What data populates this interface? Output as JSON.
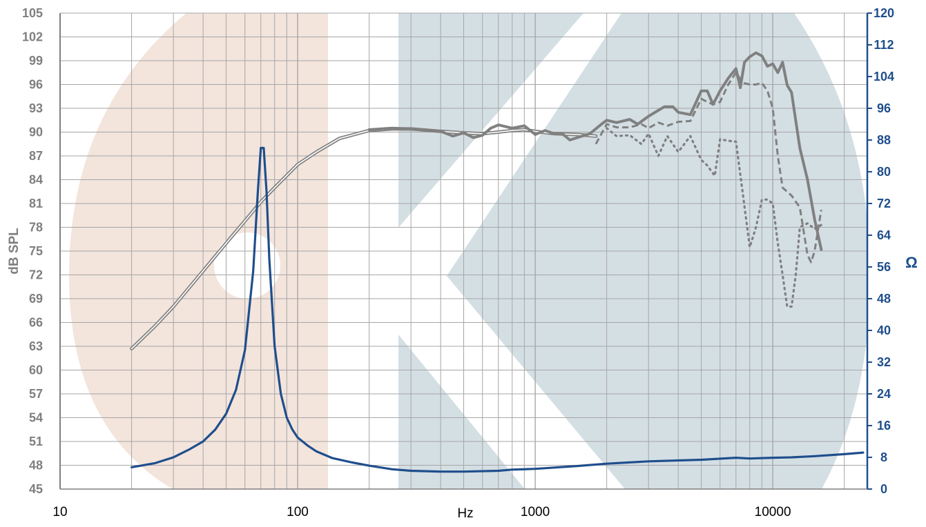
{
  "chart_data": {
    "type": "line",
    "title": "",
    "xlabel": "Hz",
    "ylabel_left": "dB SPL",
    "ylabel_right": "Ω",
    "x_scale": "log",
    "xlim": [
      10,
      25000
    ],
    "ylim_left": [
      45,
      105
    ],
    "ylim_right": [
      0,
      120
    ],
    "x_tick_labels": [
      "10",
      "100",
      "1000",
      "10000"
    ],
    "y_left_tick_labels": [
      "45",
      "48",
      "51",
      "54",
      "57",
      "60",
      "63",
      "66",
      "69",
      "72",
      "75",
      "78",
      "81",
      "84",
      "87",
      "90",
      "93",
      "96",
      "99",
      "102",
      "105"
    ],
    "y_right_tick_labels": [
      "0",
      "8",
      "16",
      "24",
      "32",
      "40",
      "48",
      "56",
      "64",
      "72",
      "80",
      "88",
      "96",
      "104",
      "112",
      "120"
    ],
    "grid": true,
    "colors": {
      "spl": "#808080",
      "impedance": "#1f4e8c",
      "grid": "#a6a6a6",
      "bg_left": "#f3e4dc",
      "bg_right": "#d4dfe4"
    },
    "series": [
      {
        "axis": "left",
        "style": "double",
        "x": [
          20,
          25,
          30,
          40,
          50,
          60,
          70,
          80,
          100,
          120,
          150,
          200,
          250,
          300,
          400,
          500,
          600,
          700,
          800,
          900,
          1000,
          1200,
          1500,
          1800
        ],
        "y": [
          62.7,
          65.5,
          68,
          72.5,
          76,
          78.8,
          81.2,
          83,
          85.9,
          87.5,
          89.2,
          90.2,
          90.4,
          90.4,
          90.1,
          89.9,
          89.8,
          90,
          90.2,
          90.3,
          90.1,
          89.8,
          89.7,
          89.5
        ]
      },
      {
        "axis": "left",
        "style": "solid",
        "x": [
          200,
          250,
          300,
          400,
          450,
          500,
          550,
          600,
          650,
          700,
          800,
          900,
          1000,
          1100,
          1200,
          1300,
          1400,
          1500,
          1700,
          1900,
          2000,
          2200,
          2500,
          2700,
          3000,
          3500,
          3800,
          4000,
          4500,
          5000,
          5300,
          5600,
          6000,
          6500,
          7000,
          7300,
          7600,
          8000,
          8500,
          9000,
          9500,
          10000,
          10500,
          11000,
          11500,
          12000,
          13000,
          14000,
          15000,
          16000
        ],
        "y": [
          90.3,
          90.5,
          90.4,
          90.1,
          89.5,
          89.9,
          89.3,
          89.6,
          90.5,
          90.9,
          90.5,
          90.8,
          89.7,
          90.2,
          89.8,
          89.8,
          89,
          89.3,
          89.8,
          91,
          91.5,
          91.2,
          91.6,
          91,
          92,
          93.2,
          93.2,
          92.5,
          92.2,
          95.2,
          95.2,
          93.5,
          95.2,
          96.8,
          98,
          95.6,
          98.8,
          99.5,
          100,
          99.6,
          98.3,
          98.6,
          97.5,
          98.8,
          95.9,
          95,
          88,
          84,
          79,
          75.2
        ]
      },
      {
        "axis": "left",
        "style": "dashed",
        "x": [
          1800,
          2000,
          2200,
          2500,
          2800,
          3000,
          3300,
          3600,
          4000,
          4500,
          5000,
          5300,
          5600,
          6000,
          6500,
          7000,
          7500,
          8000,
          8500,
          9000,
          9500,
          10000,
          10500,
          11000,
          12000,
          13000,
          14000,
          14500,
          15000,
          16000
        ],
        "y": [
          88.5,
          91,
          90.6,
          90.6,
          91,
          90.5,
          91.2,
          90.8,
          91.3,
          91.4,
          94.2,
          93.8,
          93.5,
          93.8,
          96,
          97.5,
          96.2,
          96,
          96,
          96.2,
          95.2,
          93,
          87,
          83,
          82,
          80.5,
          74.5,
          73.6,
          75,
          80.2
        ]
      },
      {
        "axis": "left",
        "style": "dotted",
        "x": [
          2000,
          2200,
          2500,
          2800,
          3000,
          3300,
          3600,
          4000,
          4500,
          5000,
          5300,
          5700,
          6000,
          6500,
          7000,
          7500,
          7800,
          8000,
          8500,
          9000,
          9500,
          10000,
          10500,
          11000,
          11500,
          12000,
          12500,
          13000,
          14000,
          15000,
          16000
        ],
        "y": [
          90.5,
          89.5,
          89.6,
          88.5,
          89.8,
          87,
          89.5,
          87.5,
          89.5,
          86.5,
          85.8,
          84.5,
          89.1,
          88.9,
          88.8,
          82,
          78,
          75.5,
          78,
          81.5,
          81.5,
          81,
          76,
          72,
          68,
          68,
          72,
          78,
          78.5,
          77.8,
          78.3
        ]
      },
      {
        "axis": "right",
        "style": "solid-blue",
        "x": [
          20,
          25,
          30,
          35,
          40,
          45,
          50,
          55,
          60,
          65,
          68,
          70,
          72,
          74,
          76,
          80,
          85,
          90,
          95,
          100,
          110,
          120,
          140,
          170,
          200,
          250,
          300,
          400,
          500,
          700,
          800,
          1000,
          1500,
          2000,
          3000,
          5000,
          7000,
          8000,
          10000,
          12000,
          15000,
          20000,
          24000
        ],
        "y": [
          5.5,
          6.5,
          8,
          10,
          12,
          15,
          19,
          25,
          35,
          55,
          75,
          86,
          86,
          75,
          58,
          36,
          24,
          18,
          15,
          13,
          11,
          9.5,
          7.8,
          6.7,
          5.9,
          5,
          4.6,
          4.4,
          4.4,
          4.6,
          4.9,
          5.1,
          5.8,
          6.4,
          7,
          7.4,
          7.9,
          7.7,
          7.9,
          8,
          8.3,
          8.8,
          9.2
        ]
      }
    ]
  }
}
